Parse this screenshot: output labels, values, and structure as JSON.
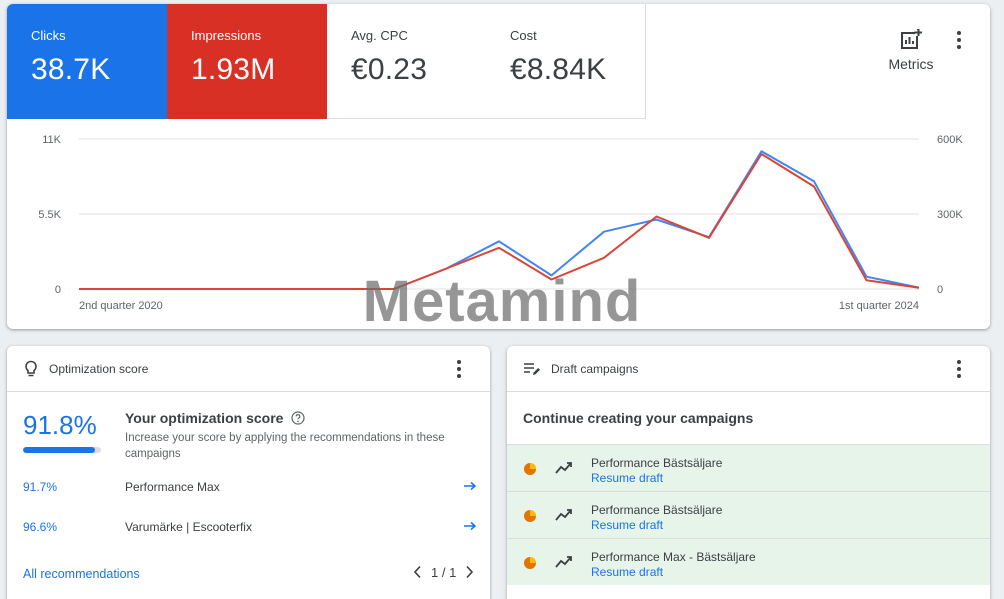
{
  "overview": {
    "tiles": [
      {
        "label": "Clicks",
        "value": "38.7K",
        "color": "#1a73e8"
      },
      {
        "label": "Impressions",
        "value": "1.93M",
        "color": "#d93025"
      },
      {
        "label": "Avg. CPC",
        "value": "€0.23"
      },
      {
        "label": "Cost",
        "value": "€8.84K"
      }
    ],
    "metrics_label": "Metrics"
  },
  "chart_data": {
    "type": "line",
    "x_labels": [
      "2nd quarter 2020",
      "1st quarter 2024"
    ],
    "left_axis_ticks": [
      "11K",
      "5.5K",
      "0"
    ],
    "right_axis_ticks": [
      "600K",
      "300K",
      "0"
    ],
    "left_ylim": [
      0,
      11000
    ],
    "right_ylim": [
      0,
      600000
    ],
    "grid": true,
    "series": [
      {
        "axis": "left",
        "color": "#4285f4",
        "values": [
          0,
          0,
          0,
          0,
          0,
          0,
          0,
          1500,
          3500,
          1000,
          4200,
          5100,
          3800,
          10100,
          7900,
          900,
          100
        ]
      },
      {
        "axis": "right",
        "color": "#db4437",
        "values": [
          0,
          0,
          0,
          0,
          0,
          0,
          0,
          82000,
          165000,
          38000,
          125000,
          290000,
          205000,
          540000,
          410000,
          35000,
          5000
        ]
      }
    ]
  },
  "watermark": "Metamind",
  "optimization": {
    "title": "Optimization score",
    "score": "91.8%",
    "score_fraction": 0.918,
    "heading": "Your optimization score",
    "description": "Increase your score by applying the recommendations in these campaigns",
    "rows": [
      {
        "score": "91.7%",
        "name": "Performance Max"
      },
      {
        "score": "96.6%",
        "name": "Varumärke | Escooterfix"
      }
    ],
    "all_link": "All recommendations",
    "pager": "1 / 1"
  },
  "drafts": {
    "title": "Draft campaigns",
    "heading": "Continue creating your campaigns",
    "items": [
      {
        "name": "Performance Bästsäljare",
        "link": "Resume draft"
      },
      {
        "name": "Performance Bästsäljare",
        "link": "Resume draft"
      },
      {
        "name": "Performance Max - Bästsäljare",
        "link": "Resume draft"
      }
    ]
  }
}
